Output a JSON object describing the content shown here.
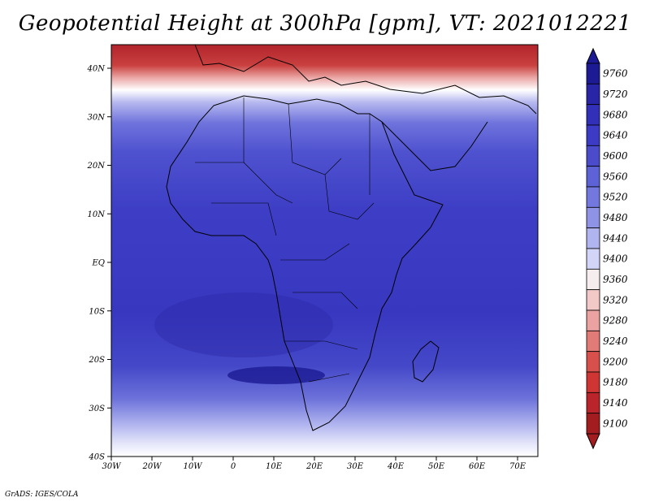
{
  "title": "Geopotential Height at 300hPa [gpm], VT: 2021012221",
  "credit": "GrADS: IGES/COLA",
  "axes": {
    "lon_labels": [
      "30W",
      "20W",
      "10W",
      "0",
      "10E",
      "20E",
      "30E",
      "40E",
      "50E",
      "60E",
      "70E"
    ],
    "lat_labels": [
      "40N",
      "30N",
      "20N",
      "10N",
      "EQ",
      "10S",
      "20S",
      "30S",
      "40S"
    ]
  },
  "colorbar": {
    "levels": [
      "9760",
      "9720",
      "9680",
      "9640",
      "9600",
      "9560",
      "9520",
      "9480",
      "9440",
      "9400",
      "9360",
      "9320",
      "9280",
      "9240",
      "9200",
      "9180",
      "9140",
      "9100"
    ],
    "colors": [
      "#1c1b93",
      "#2826a6",
      "#3230b8",
      "#3c3bc5",
      "#4a4ccc",
      "#5d62d6",
      "#7378de",
      "#8f93e6",
      "#b0b4ef",
      "#d2d5f7",
      "#f6eeee",
      "#f2c9c7",
      "#eaa3a0",
      "#e07b78",
      "#d7504c",
      "#cf3633",
      "#b9252a",
      "#a31d20"
    ]
  }
}
